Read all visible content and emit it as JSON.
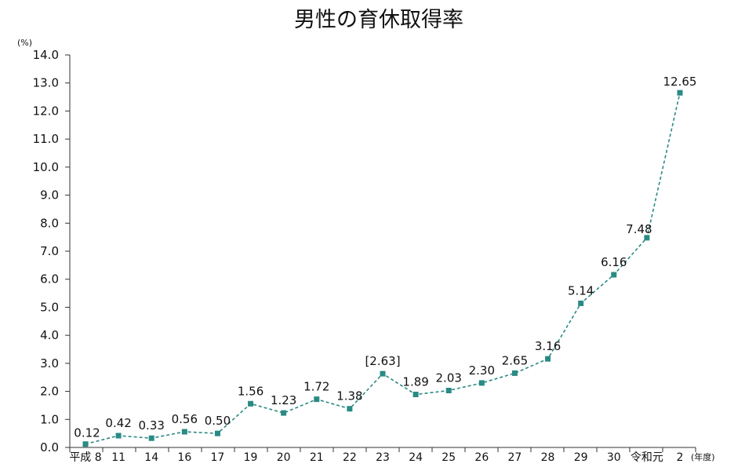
{
  "chart_data": {
    "type": "line",
    "title": "男性の育休取得率",
    "y_unit": "(%)",
    "x_unit": "(年度)",
    "ylim": [
      0,
      14
    ],
    "y_ticks": [
      "0.0",
      "1.0",
      "2.0",
      "3.0",
      "4.0",
      "5.0",
      "6.0",
      "7.0",
      "8.0",
      "9.0",
      "10.0",
      "11.0",
      "12.0",
      "13.0",
      "14.0"
    ],
    "categories": [
      "平成 8",
      "11",
      "14",
      "16",
      "17",
      "19",
      "20",
      "21",
      "22",
      "23",
      "24",
      "25",
      "26",
      "27",
      "28",
      "29",
      "30",
      "令和元",
      "2"
    ],
    "values": [
      0.12,
      0.42,
      0.33,
      0.56,
      0.5,
      1.56,
      1.23,
      1.72,
      1.38,
      2.63,
      1.89,
      2.03,
      2.3,
      2.65,
      3.16,
      5.14,
      6.16,
      7.48,
      12.65
    ],
    "data_labels": [
      "0.12",
      "0.42",
      "0.33",
      "0.56",
      "0.50",
      "1.56",
      "1.23",
      "1.72",
      "1.38",
      "[2.63]",
      "1.89",
      "2.03",
      "2.30",
      "2.65",
      "3.16",
      "5.14",
      "6.16",
      "7.48",
      "12.65"
    ],
    "line_style": "dashed",
    "marker": "square",
    "colors": {
      "series": "#2a8a84",
      "axis": "#333333"
    },
    "grid": false,
    "legend": "none"
  }
}
